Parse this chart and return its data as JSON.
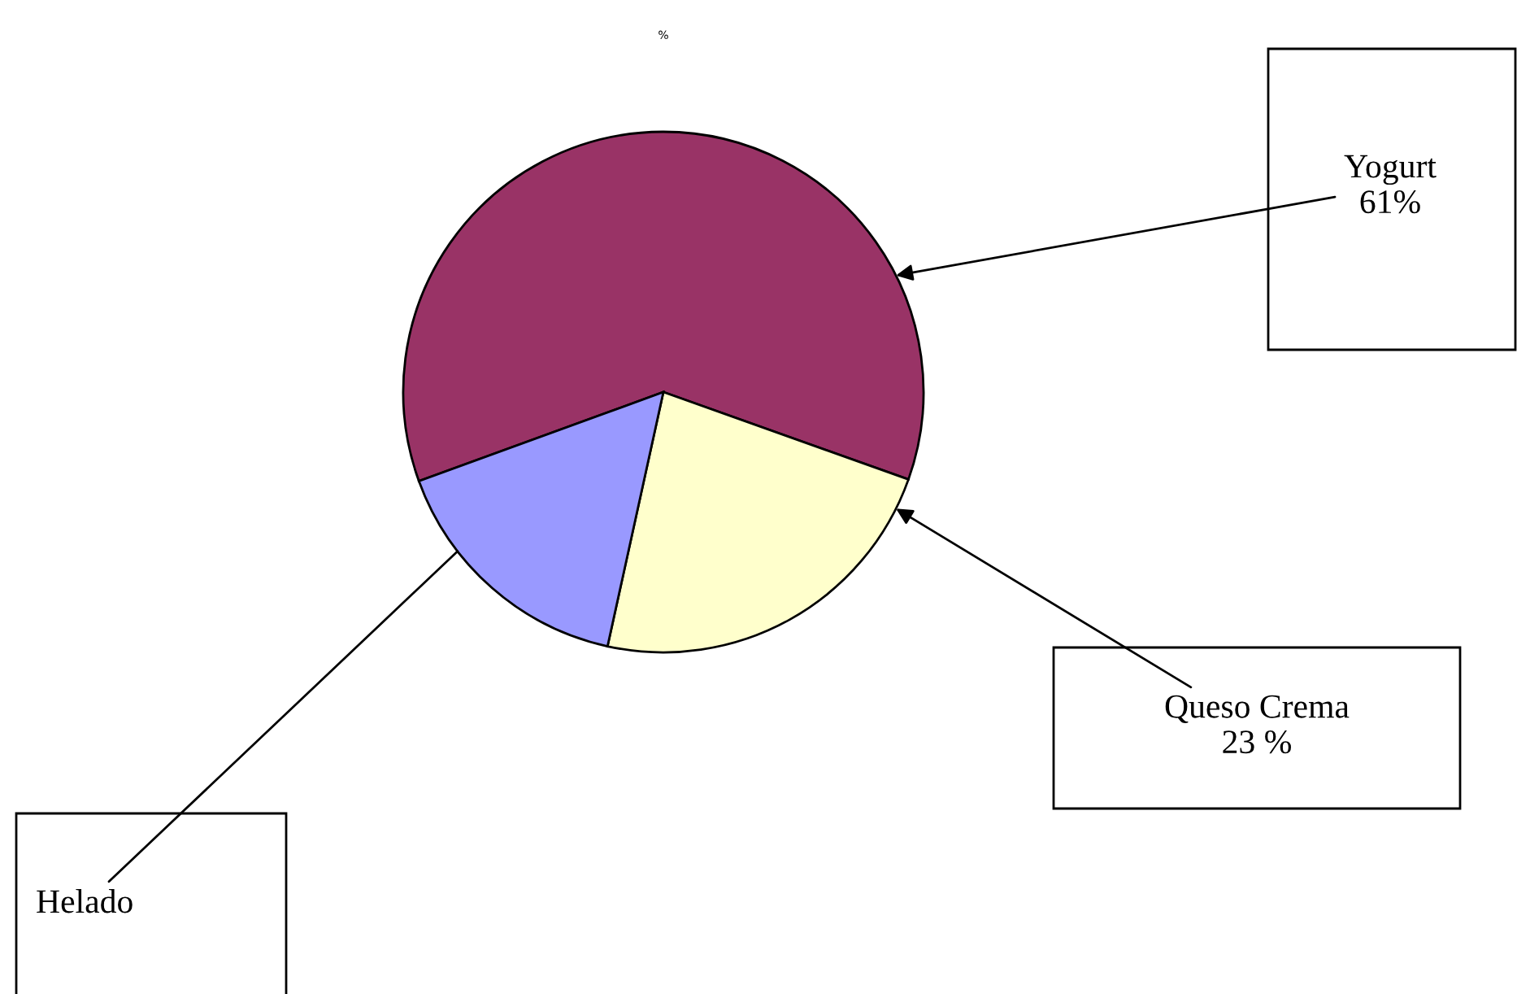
{
  "chart_data": {
    "type": "pie",
    "title": "%",
    "categories": [
      "Yogurt",
      "Queso Crema",
      "Helado"
    ],
    "values": [
      61,
      23,
      16
    ],
    "colors": [
      "#993366",
      "#ffffcc",
      "#9999ff"
    ],
    "value_labels": [
      "61%",
      "23 %",
      null
    ],
    "legend": false
  }
}
